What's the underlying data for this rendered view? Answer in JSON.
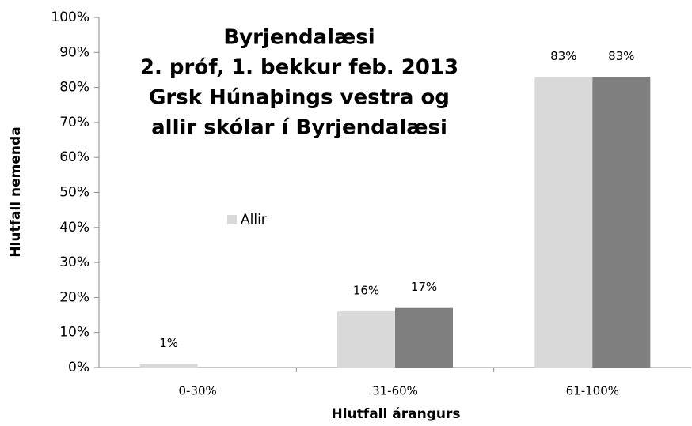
{
  "chart_data": {
    "type": "bar",
    "title": [
      "Byrjendalæsi",
      "2. próf, 1. bekkur feb. 2013",
      "Grsk Húnaþings vestra og",
      "allir skólar í Byrjendalæsi"
    ],
    "x_label": "Hlutfall árangurs",
    "y_label": "Hlutfall nemenda",
    "categories": [
      "0-30%",
      "31-60%",
      "61-100%"
    ],
    "series": [
      {
        "name": "Allir",
        "color": "#d9d9d9",
        "values": [
          1,
          16,
          83
        ],
        "value_labels": [
          "1%",
          "16%",
          "83%"
        ]
      },
      {
        "color": "#7f7f7f",
        "values": [
          null,
          17,
          83
        ],
        "value_labels": [
          null,
          "17%",
          "83%"
        ]
      }
    ],
    "ylim": [
      0,
      100
    ],
    "yticks": [
      {
        "value": 0,
        "label": "0%"
      },
      {
        "value": 10,
        "label": "10%"
      },
      {
        "value": 20,
        "label": "20%"
      },
      {
        "value": 30,
        "label": "30%"
      },
      {
        "value": 40,
        "label": "40%"
      },
      {
        "value": 50,
        "label": "50%"
      },
      {
        "value": 60,
        "label": "60%"
      },
      {
        "value": 70,
        "label": "70%"
      },
      {
        "value": 80,
        "label": "80%"
      },
      {
        "value": 90,
        "label": "90%"
      },
      {
        "value": 100,
        "label": "100%"
      }
    ],
    "grid": false
  }
}
